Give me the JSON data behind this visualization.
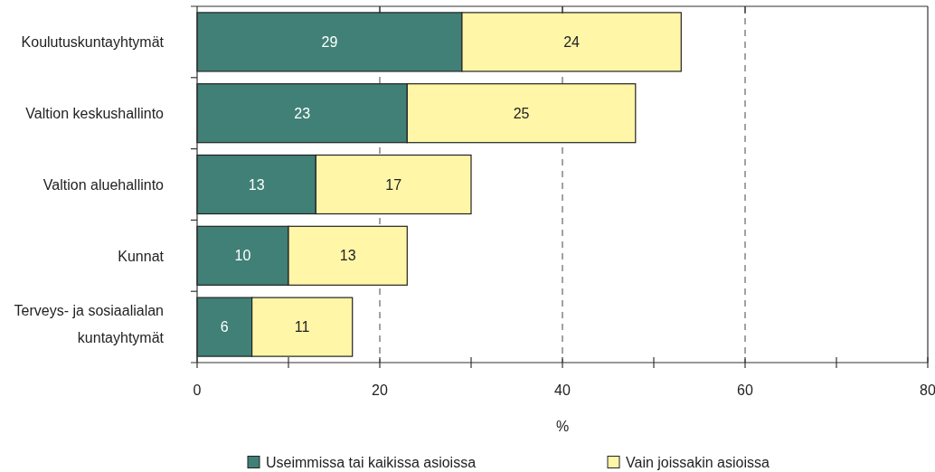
{
  "chart_data": {
    "type": "bar",
    "orientation": "horizontal",
    "stacked": true,
    "categories": [
      "Koulutuskuntayhtymät",
      "Valtion keskushallinto",
      "Valtion aluehallinto",
      "Kunnat",
      "Terveys- ja sosiaalialan kuntayhtymät"
    ],
    "series": [
      {
        "name": "Useimmissa tai kaikissa asioissa",
        "color": "#408076",
        "values": [
          29,
          23,
          13,
          10,
          6
        ]
      },
      {
        "name": "Vain joissakin asioissa",
        "color": "#fff6a8",
        "values": [
          24,
          25,
          17,
          13,
          11
        ]
      }
    ],
    "xlabel": "%",
    "xlim": [
      0,
      80
    ],
    "xticks": [
      0,
      {
        "value": 10,
        "label": null
      },
      20,
      {
        "value": 30,
        "label": null
      },
      40,
      {
        "value": 50,
        "label": null
      },
      60,
      {
        "value": 70,
        "label": null
      },
      80
    ],
    "grid": "x",
    "legend": "bottom",
    "data_labels": true
  }
}
